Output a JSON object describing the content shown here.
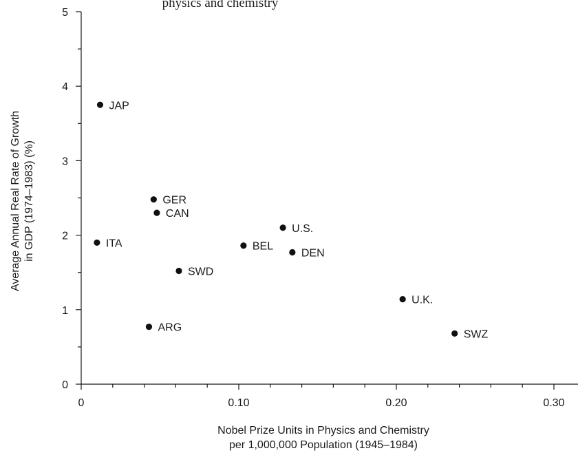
{
  "chart_data": {
    "type": "scatter",
    "title": "physics and chemistry",
    "xlabel": [
      "Nobel Prize Units in Physics and Chemistry",
      "per 1,000,000 Population (1945–1984)"
    ],
    "ylabel": [
      "Average Annual Real Rate of Growth",
      "in GDP (1974–1983) (%)"
    ],
    "xlim": [
      0,
      0.31
    ],
    "ylim": [
      0,
      5
    ],
    "x_ticks": [
      0,
      0.1,
      0.2,
      0.3
    ],
    "x_tick_labels": [
      "0",
      "0.10",
      "0.20",
      "0.30"
    ],
    "x_minor_step": 0.02,
    "y_ticks": [
      0,
      1,
      2,
      3,
      4,
      5
    ],
    "y_tick_labels": [
      "0",
      "1",
      "2",
      "3",
      "4",
      "5"
    ],
    "y_minor_step": 0.5,
    "grid": false,
    "points": [
      {
        "label": "JAP",
        "x": 0.012,
        "y": 3.75
      },
      {
        "label": "GER",
        "x": 0.046,
        "y": 2.48
      },
      {
        "label": "CAN",
        "x": 0.048,
        "y": 2.3
      },
      {
        "label": "ITA",
        "x": 0.01,
        "y": 1.9
      },
      {
        "label": "SWD",
        "x": 0.062,
        "y": 1.52
      },
      {
        "label": "ARG",
        "x": 0.043,
        "y": 0.77
      },
      {
        "label": "BEL",
        "x": 0.103,
        "y": 1.86
      },
      {
        "label": "U.S.",
        "x": 0.128,
        "y": 2.1
      },
      {
        "label": "DEN",
        "x": 0.134,
        "y": 1.77
      },
      {
        "label": "U.K.",
        "x": 0.204,
        "y": 1.14
      },
      {
        "label": "SWZ",
        "x": 0.237,
        "y": 0.68
      }
    ]
  }
}
